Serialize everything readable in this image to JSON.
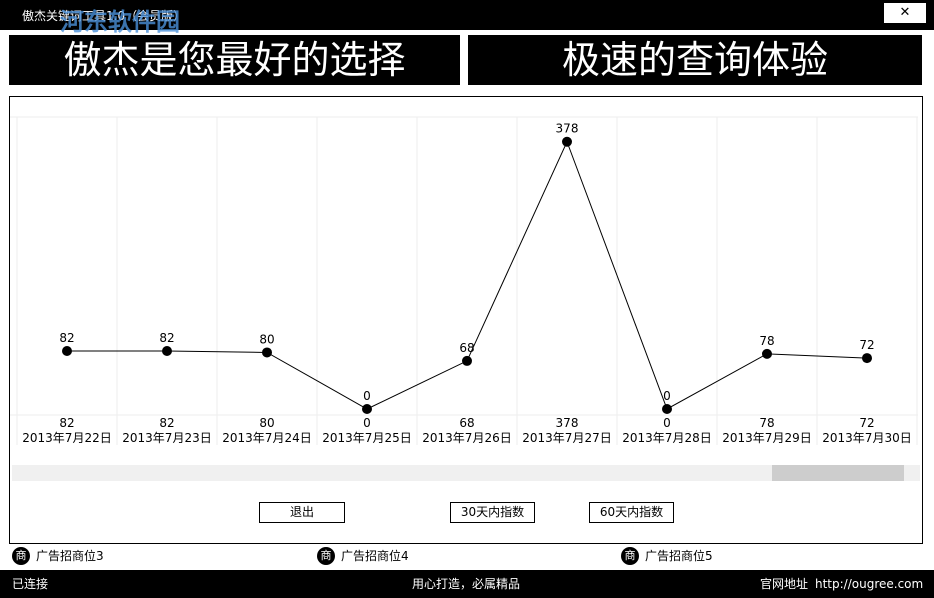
{
  "window": {
    "title": "傲杰关键词工具1.0（会员版）",
    "watermark": "河东软件园"
  },
  "banner": {
    "left": "傲杰是您最好的选择",
    "right": "极速的查询体验"
  },
  "chart_data": {
    "type": "line",
    "categories": [
      "2013年7月22日",
      "2013年7月23日",
      "2013年7月24日",
      "2013年7月25日",
      "2013年7月26日",
      "2013年7月27日",
      "2013年7月28日",
      "2013年7月29日",
      "2013年7月30日"
    ],
    "values": [
      82,
      82,
      80,
      0,
      68,
      378,
      0,
      78,
      72
    ],
    "color": "#000000",
    "ylim": [
      0,
      413
    ],
    "grid": true
  },
  "buttons": [
    "退出",
    "30天内指数",
    "60天内指数"
  ],
  "ads": {
    "icon": "商",
    "items": [
      "广告招商位3",
      "广告招商位4",
      "广告招商位5"
    ]
  },
  "status": {
    "left": "已连接",
    "center": "用心打造，必属精品",
    "site_label": "官网地址",
    "site_url": "http://ougree.com"
  }
}
